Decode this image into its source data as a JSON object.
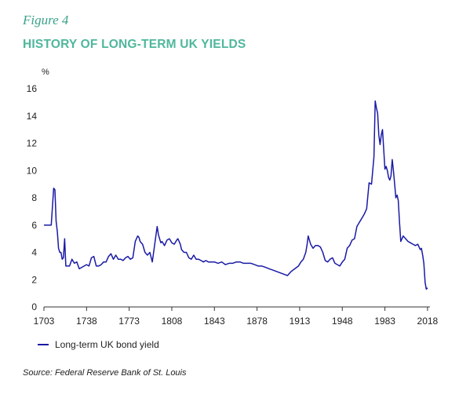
{
  "header": {
    "figure_label": "Figure 4",
    "title": "HISTORY OF LONG-TERM UK YIELDS"
  },
  "legend": {
    "label": "Long-term UK bond yield"
  },
  "source": "Source: Federal Reserve Bank of St. Louis",
  "colors": {
    "accent": "#4fb79c",
    "line": "#1a1aa6",
    "axis": "#333333"
  },
  "chart_data": {
    "type": "line",
    "title": "HISTORY OF LONG-TERM UK YIELDS",
    "ylabel": "%",
    "xlabel": "",
    "xlim": [
      1703,
      2020
    ],
    "ylim": [
      0,
      16
    ],
    "xticks": [
      1703,
      1738,
      1773,
      1808,
      1843,
      1878,
      1913,
      1948,
      1983,
      2018
    ],
    "yticks": [
      0,
      2,
      4,
      6,
      8,
      10,
      12,
      14,
      16
    ],
    "grid": false,
    "legend_position": "bottom-left",
    "series": [
      {
        "name": "Long-term UK bond yield",
        "x": [
          1703,
          1706,
          1709,
          1711,
          1712,
          1713,
          1714,
          1715,
          1716,
          1717,
          1718,
          1719,
          1720,
          1721,
          1722,
          1723,
          1724,
          1726,
          1728,
          1730,
          1732,
          1734,
          1736,
          1738,
          1740,
          1742,
          1744,
          1746,
          1748,
          1750,
          1752,
          1754,
          1756,
          1758,
          1760,
          1762,
          1764,
          1766,
          1768,
          1770,
          1772,
          1774,
          1776,
          1778,
          1780,
          1781,
          1782,
          1784,
          1786,
          1788,
          1790,
          1792,
          1794,
          1796,
          1797,
          1798,
          1799,
          1800,
          1802,
          1804,
          1806,
          1808,
          1810,
          1812,
          1813,
          1814,
          1815,
          1816,
          1818,
          1820,
          1822,
          1824,
          1826,
          1828,
          1830,
          1832,
          1834,
          1836,
          1838,
          1840,
          1843,
          1846,
          1849,
          1852,
          1855,
          1858,
          1861,
          1864,
          1867,
          1870,
          1873,
          1876,
          1879,
          1882,
          1885,
          1888,
          1891,
          1894,
          1897,
          1900,
          1903,
          1906,
          1909,
          1912,
          1914,
          1916,
          1918,
          1919,
          1920,
          1922,
          1924,
          1926,
          1928,
          1930,
          1932,
          1934,
          1936,
          1938,
          1940,
          1942,
          1944,
          1946,
          1948,
          1950,
          1952,
          1954,
          1956,
          1958,
          1960,
          1962,
          1964,
          1966,
          1968,
          1970,
          1972,
          1974,
          1975,
          1976,
          1977,
          1978,
          1979,
          1980,
          1981,
          1982,
          1983,
          1984,
          1985,
          1986,
          1987,
          1988,
          1989,
          1990,
          1991,
          1992,
          1993,
          1994,
          1995,
          1996,
          1998,
          2000,
          2002,
          2004,
          2006,
          2008,
          2010,
          2012,
          2013,
          2014,
          2015,
          2016,
          2017,
          2018
        ],
        "values": [
          6.0,
          6.0,
          6.0,
          8.7,
          8.6,
          6.3,
          5.5,
          4.3,
          4.0,
          4.0,
          3.5,
          3.6,
          5.0,
          3.0,
          3.0,
          3.0,
          3.0,
          3.5,
          3.2,
          3.3,
          2.8,
          2.9,
          3.0,
          3.1,
          3.0,
          3.6,
          3.7,
          3.0,
          3.0,
          3.1,
          3.3,
          3.3,
          3.7,
          3.9,
          3.5,
          3.8,
          3.5,
          3.5,
          3.4,
          3.6,
          3.7,
          3.5,
          3.6,
          4.8,
          5.2,
          5.1,
          4.8,
          4.6,
          4.0,
          3.8,
          4.0,
          3.3,
          4.6,
          5.9,
          5.3,
          5.0,
          4.7,
          4.8,
          4.5,
          4.9,
          5.0,
          4.7,
          4.6,
          4.9,
          5.0,
          4.8,
          4.6,
          4.2,
          4.0,
          4.0,
          3.6,
          3.5,
          3.8,
          3.5,
          3.5,
          3.4,
          3.3,
          3.4,
          3.3,
          3.3,
          3.3,
          3.2,
          3.3,
          3.1,
          3.2,
          3.2,
          3.3,
          3.3,
          3.2,
          3.2,
          3.2,
          3.1,
          3.0,
          3.0,
          2.9,
          2.8,
          2.7,
          2.6,
          2.5,
          2.4,
          2.3,
          2.6,
          2.8,
          3.0,
          3.3,
          3.5,
          4.0,
          4.5,
          5.2,
          4.6,
          4.3,
          4.5,
          4.5,
          4.4,
          4.0,
          3.4,
          3.3,
          3.5,
          3.6,
          3.2,
          3.1,
          3.0,
          3.3,
          3.5,
          4.3,
          4.5,
          4.9,
          5.0,
          5.9,
          6.2,
          6.5,
          6.8,
          7.2,
          9.1,
          9.0,
          11.0,
          15.1,
          14.6,
          14.2,
          12.6,
          11.9,
          12.6,
          13.0,
          11.6,
          10.1,
          10.3,
          10.0,
          9.5,
          9.3,
          9.6,
          10.8,
          10.0,
          9.0,
          8.0,
          8.2,
          7.8,
          6.2,
          4.8,
          5.2,
          5.0,
          4.8,
          4.7,
          4.6,
          4.5,
          4.6,
          4.2,
          4.3,
          3.8,
          3.2,
          1.8,
          1.3,
          1.4
        ]
      }
    ]
  }
}
